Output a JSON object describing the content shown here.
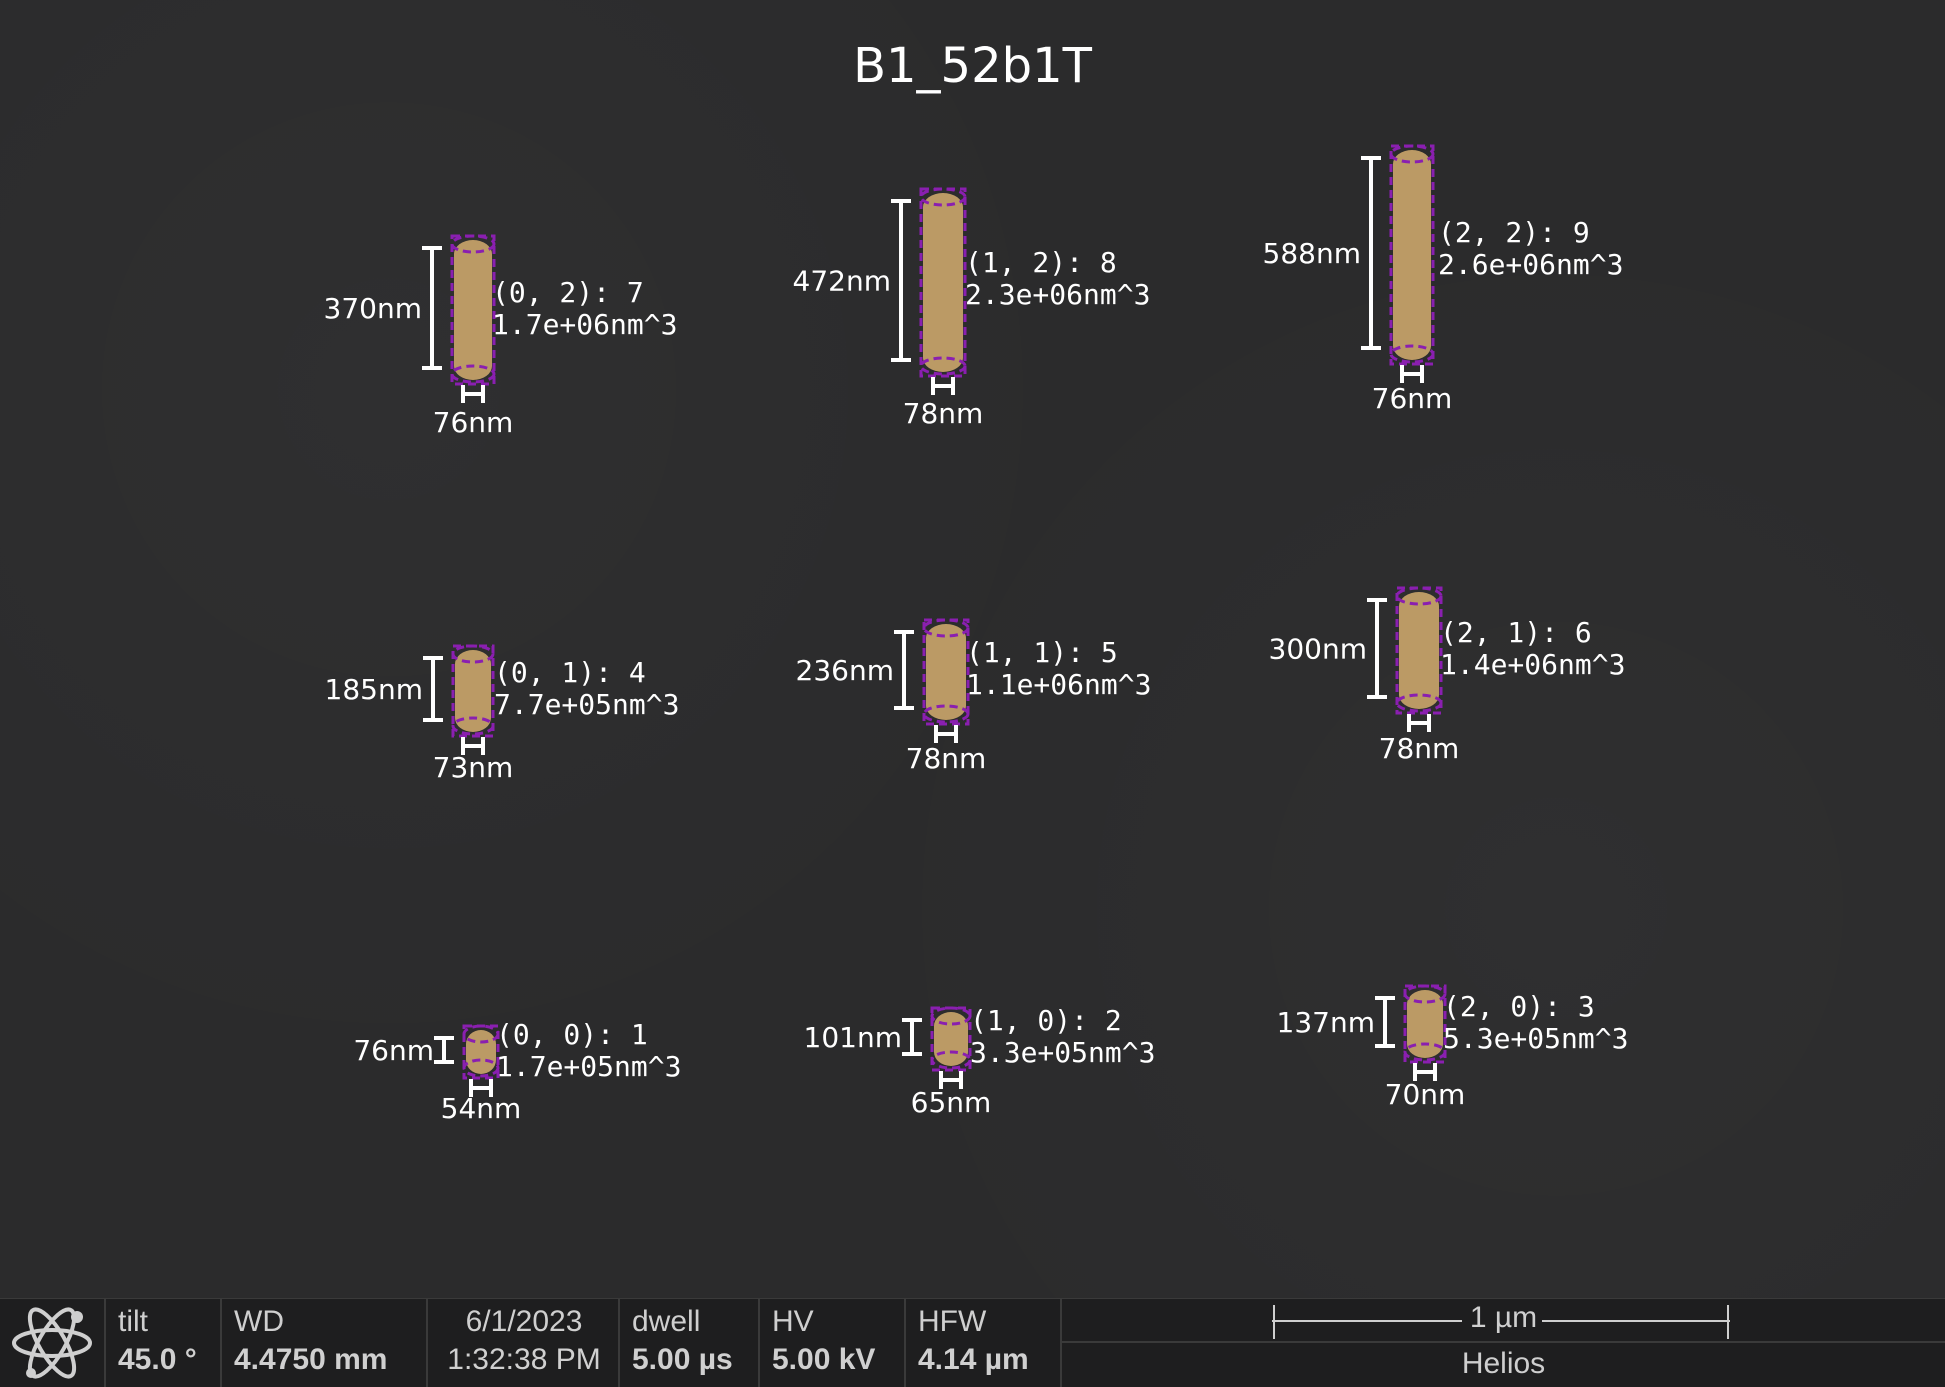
{
  "title": "B1_52b1T",
  "particles": [
    {
      "id": "(0, 2): 7",
      "volume": "1.7e+06nm^3",
      "height": "370nm",
      "width": "76nm"
    },
    {
      "id": "(1, 2): 8",
      "volume": "2.3e+06nm^3",
      "height": "472nm",
      "width": "78nm"
    },
    {
      "id": "(2, 2): 9",
      "volume": "2.6e+06nm^3",
      "height": "588nm",
      "width": "76nm"
    },
    {
      "id": "(0, 1): 4",
      "volume": "7.7e+05nm^3",
      "height": "185nm",
      "width": "73nm"
    },
    {
      "id": "(1, 1): 5",
      "volume": "1.1e+06nm^3",
      "height": "236nm",
      "width": "78nm"
    },
    {
      "id": "(2, 1): 6",
      "volume": "1.4e+06nm^3",
      "height": "300nm",
      "width": "78nm"
    },
    {
      "id": "(0, 0): 1",
      "volume": "1.7e+05nm^3",
      "height": "76nm",
      "width": "54nm"
    },
    {
      "id": "(1, 0): 2",
      "volume": "3.3e+05nm^3",
      "height": "101nm",
      "width": "65nm"
    },
    {
      "id": "(2, 0): 3",
      "volume": "5.3e+05nm^3",
      "height": "137nm",
      "width": "70nm"
    }
  ],
  "colors": {
    "particle": "#c8a46a",
    "outline": "#8a1fb0",
    "label": "#ffffff"
  },
  "status": {
    "logo_icon": "atom-icon",
    "tilt_label": "tilt",
    "tilt_value": "45.0 °",
    "wd_label": "WD",
    "wd_value": "4.4750 mm",
    "date": "6/1/2023",
    "time": "1:32:38 PM",
    "dwell_label": "dwell",
    "dwell_value": "5.00 µs",
    "hv_label": "HV",
    "hv_value": "5.00 kV",
    "hfw_label": "HFW",
    "hfw_value": "4.14 µm",
    "scale_label": "1 µm",
    "instrument": "Helios"
  }
}
